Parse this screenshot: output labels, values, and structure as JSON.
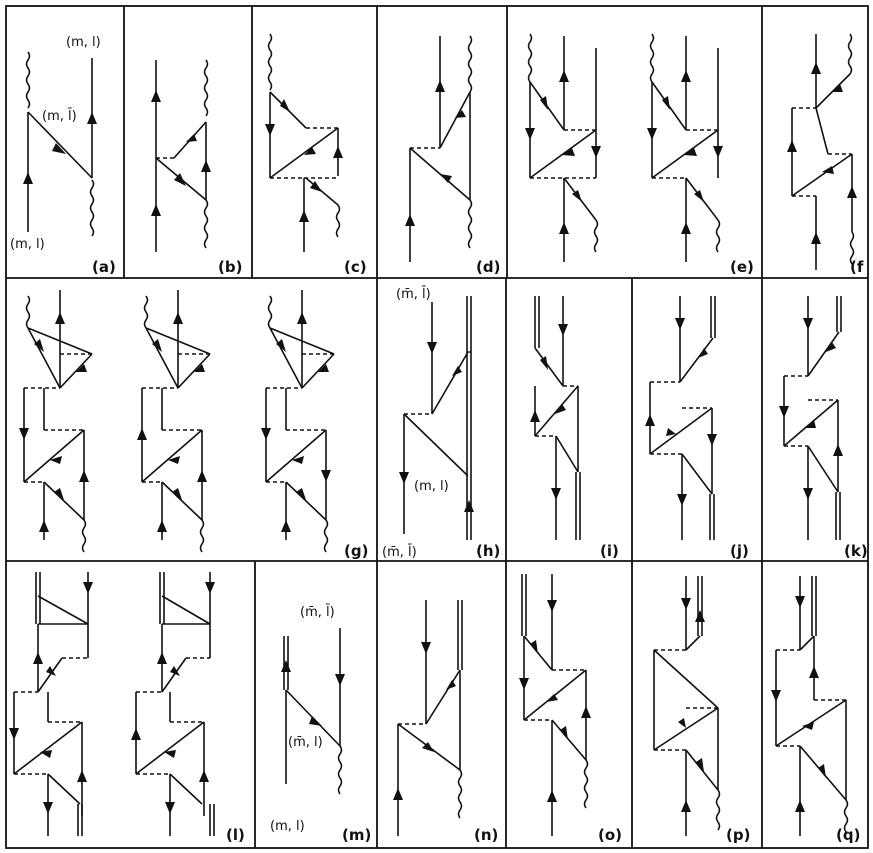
{
  "panels": [
    {
      "id": "a",
      "label": "(a)"
    },
    {
      "id": "b",
      "label": "(b)"
    },
    {
      "id": "c",
      "label": "(c)"
    },
    {
      "id": "d",
      "label": "(d)"
    },
    {
      "id": "e",
      "label": "(e)"
    },
    {
      "id": "f",
      "label": "(f"
    },
    {
      "id": "g",
      "label": "(g)"
    },
    {
      "id": "h",
      "label": "(h)"
    },
    {
      "id": "i",
      "label": "(i)"
    },
    {
      "id": "j",
      "label": "(j)"
    },
    {
      "id": "k",
      "label": "(k)"
    },
    {
      "id": "l",
      "label": "(l)"
    },
    {
      "id": "m",
      "label": "(m)"
    },
    {
      "id": "n",
      "label": "(n)"
    },
    {
      "id": "o",
      "label": "(o)"
    },
    {
      "id": "p",
      "label": "(p)"
    },
    {
      "id": "q",
      "label": "(q)"
    }
  ],
  "state_labels": {
    "a_top": "(m, l)",
    "a_mid": "(m, l̄)",
    "a_bottom": "(m, l)",
    "h_top": "(m̄, l̄)",
    "h_mid": "(m, l)",
    "h_bottom": "(m̄, l̄)",
    "m_top": "(m̄, l̄)",
    "m_mid": "(m̄, l)",
    "m_bottom": "(m, l)"
  }
}
